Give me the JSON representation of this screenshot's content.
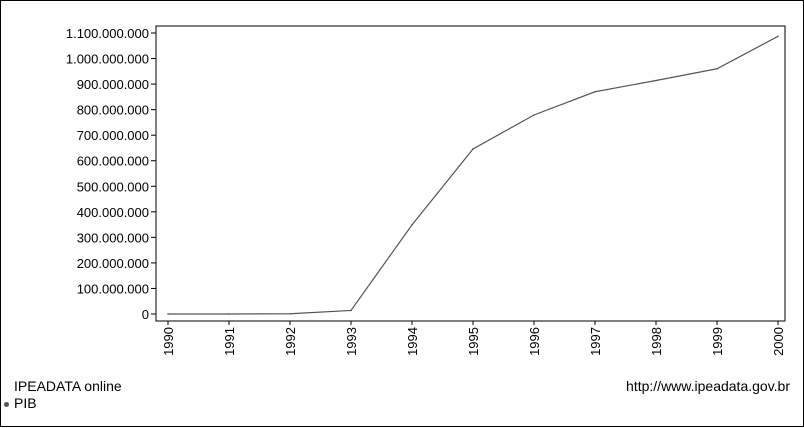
{
  "chart_data": {
    "type": "line",
    "title": "",
    "xlabel": "",
    "ylabel": "",
    "categories": [
      "1990",
      "1991",
      "1992",
      "1993",
      "1994",
      "1995",
      "1996",
      "1997",
      "1998",
      "1999",
      "2000"
    ],
    "series": [
      {
        "name": "PIB",
        "values": [
          0,
          0,
          1000000,
          14000000,
          349000000,
          646000000,
          779000000,
          870000000,
          914000000,
          960000000,
          1087000000
        ]
      }
    ],
    "ylim": [
      0,
      1100000000
    ],
    "yticks": [
      0,
      100000000,
      200000000,
      300000000,
      400000000,
      500000000,
      600000000,
      700000000,
      800000000,
      900000000,
      1000000000,
      1100000000
    ],
    "ytick_labels": [
      "0",
      "100.000.000",
      "200.000.000",
      "300.000.000",
      "400.000.000",
      "500.000.000",
      "600.000.000",
      "700.000.000",
      "800.000.000",
      "900.000.000",
      "1.000.000.000",
      "1.100.000.000"
    ],
    "grid": false,
    "line_color": "#555555"
  },
  "footer": {
    "source_label": "IPEADATA online",
    "series_label": "PIB",
    "url": "http://www.ipeadata.gov.br"
  }
}
